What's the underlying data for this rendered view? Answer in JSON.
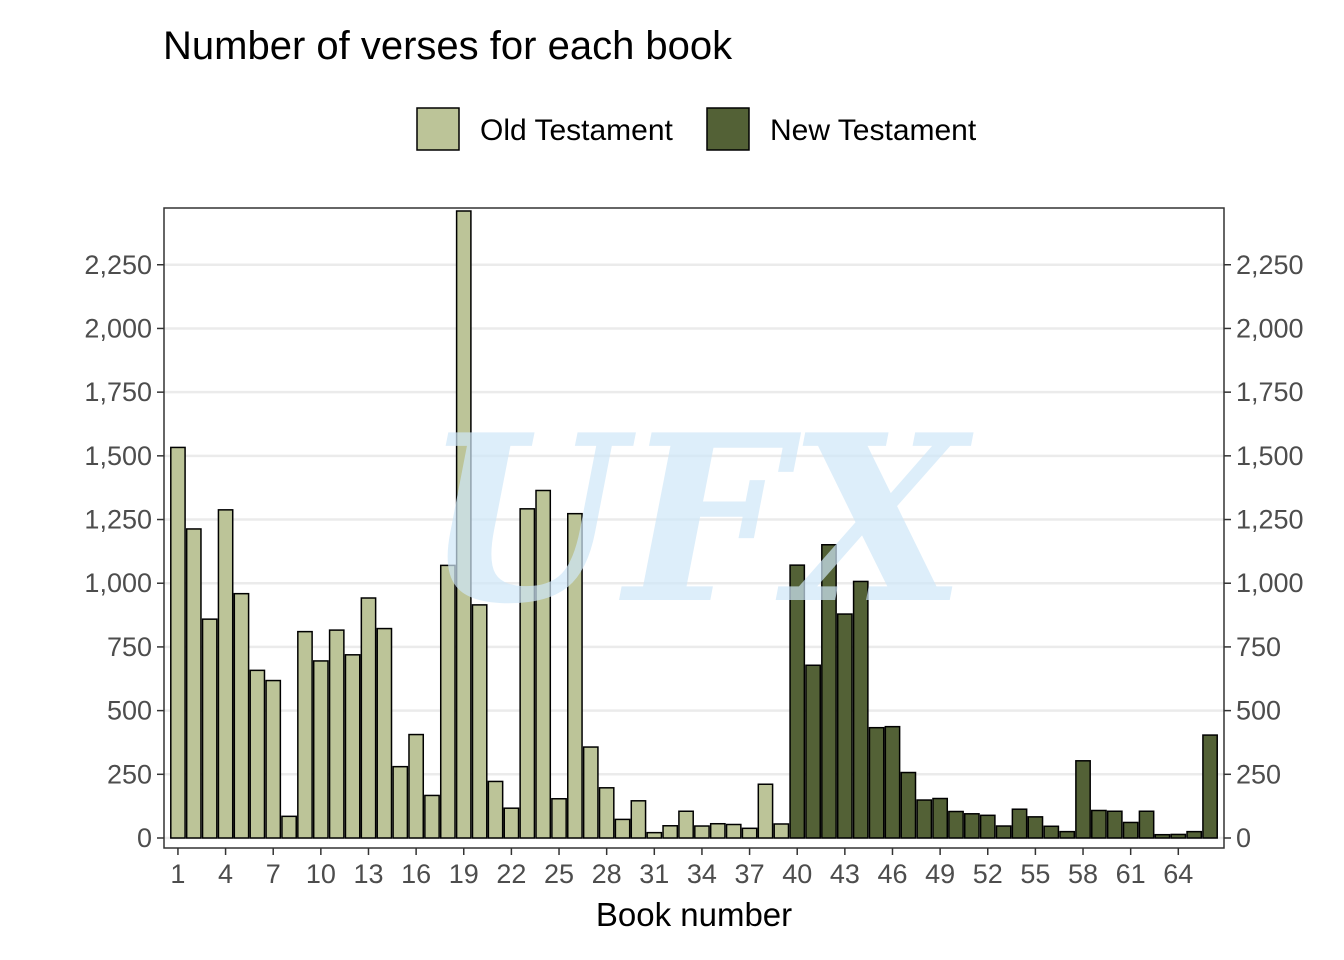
{
  "chart_data": {
    "type": "bar",
    "title": "Number of verses for each book",
    "xlabel": "Book number",
    "ylabel": "",
    "xlim": [
      0.5,
      66.5
    ],
    "ylim": [
      0,
      2461
    ],
    "x_ticks": [
      1,
      4,
      7,
      10,
      13,
      16,
      19,
      22,
      25,
      28,
      31,
      34,
      37,
      40,
      43,
      46,
      49,
      52,
      55,
      58,
      61,
      64
    ],
    "y_ticks": [
      0,
      250,
      500,
      750,
      1000,
      1250,
      1500,
      1750,
      2000,
      2250
    ],
    "y_tick_labels": [
      "0",
      "250",
      "500",
      "750",
      "1,000",
      "1,250",
      "1,500",
      "1,750",
      "2,000",
      "2,250"
    ],
    "secondary_y_axis": true,
    "grid": "horizontal major",
    "legend_position": "top",
    "series": [
      {
        "name": "Old Testament",
        "color": "#bcc498",
        "x": [
          1,
          2,
          3,
          4,
          5,
          6,
          7,
          8,
          9,
          10,
          11,
          12,
          13,
          14,
          15,
          16,
          17,
          18,
          19,
          20,
          21,
          22,
          23,
          24,
          25,
          26,
          27,
          28,
          29,
          30,
          31,
          32,
          33,
          34,
          35,
          36,
          37,
          38,
          39
        ],
        "values": [
          1533,
          1213,
          859,
          1288,
          959,
          658,
          618,
          85,
          810,
          695,
          816,
          719,
          942,
          822,
          280,
          406,
          167,
          1070,
          2461,
          915,
          222,
          117,
          1292,
          1364,
          154,
          1273,
          357,
          197,
          73,
          146,
          21,
          48,
          105,
          47,
          56,
          53,
          38,
          211,
          55
        ]
      },
      {
        "name": "New Testament",
        "color": "#536136",
        "x": [
          40,
          41,
          42,
          43,
          44,
          45,
          46,
          47,
          48,
          49,
          50,
          51,
          52,
          53,
          54,
          55,
          56,
          57,
          58,
          59,
          60,
          61,
          62,
          63,
          64,
          65,
          66
        ],
        "values": [
          1071,
          678,
          1151,
          879,
          1007,
          433,
          437,
          257,
          149,
          155,
          104,
          95,
          89,
          47,
          113,
          83,
          46,
          25,
          303,
          108,
          105,
          61,
          105,
          13,
          14,
          25,
          404
        ]
      }
    ]
  },
  "watermark": {
    "text": "UFX",
    "color": "#cfe7f8"
  }
}
